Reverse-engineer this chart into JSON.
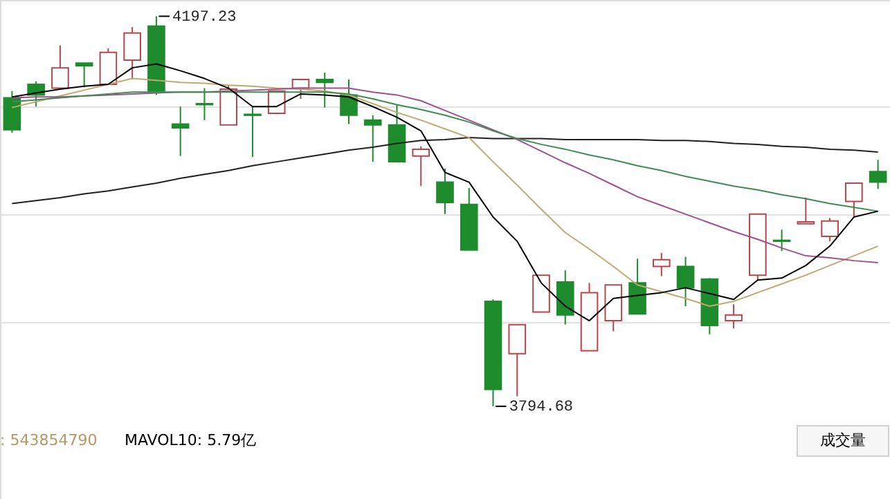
{
  "chart_data": {
    "type": "candlestick",
    "categories": [
      null,
      null,
      null,
      null,
      null,
      null,
      null,
      null,
      null,
      null,
      null,
      null,
      null,
      null,
      null,
      null,
      null,
      null,
      null,
      null,
      null,
      null,
      null,
      null,
      null,
      null,
      null,
      null,
      null,
      null,
      null,
      null,
      null,
      null,
      null,
      null,
      null
    ],
    "ohlc": [
      [
        4113,
        4120,
        4077,
        4080
      ],
      [
        4127,
        4130,
        4104,
        4116
      ],
      [
        4123,
        4167,
        4123,
        4144
      ],
      [
        4149,
        4149,
        4124,
        4146
      ],
      [
        4127,
        4164,
        4127,
        4160
      ],
      [
        4152,
        4186,
        4132,
        4180
      ],
      [
        4187,
        4197.23,
        4116,
        4120
      ],
      [
        4086,
        4104,
        4053,
        4082
      ],
      [
        4107,
        4123,
        4090,
        4106
      ],
      [
        4085,
        4126,
        4085,
        4122
      ],
      [
        4096,
        4104,
        4052,
        4095
      ],
      [
        4097,
        4120,
        4097,
        4120
      ],
      [
        4123,
        4132,
        4112,
        4132
      ],
      [
        4132,
        4139,
        4103,
        4129
      ],
      [
        4116,
        4132,
        4086,
        4095
      ],
      [
        4090,
        4095,
        4047,
        4085
      ],
      [
        4085,
        4106,
        4047,
        4047
      ],
      [
        4053,
        4063,
        4022,
        4060
      ],
      [
        4026,
        4040,
        3993,
        4005
      ],
      [
        4003,
        4020,
        3956,
        3956
      ],
      [
        3903,
        3905,
        3794.68,
        3812
      ],
      [
        3849,
        3879,
        3805,
        3879
      ],
      [
        3892,
        3930,
        3892,
        3930
      ],
      [
        3923,
        3935,
        3879,
        3889
      ],
      [
        3852,
        3922,
        3852,
        3912
      ],
      [
        3883,
        3920,
        3872,
        3920
      ],
      [
        3922,
        3947,
        3890,
        3890
      ],
      [
        3939,
        3953,
        3929,
        3946
      ],
      [
        3939,
        3949,
        3898,
        3917
      ],
      [
        3926,
        3927,
        3869,
        3878
      ],
      [
        3883,
        3900,
        3875,
        3889
      ],
      [
        3930,
        3993,
        3925,
        3993
      ],
      [
        3966,
        3977,
        3955,
        3965
      ],
      [
        3983,
        4010,
        3983,
        3985
      ],
      [
        3970,
        3989,
        3965,
        3986
      ],
      [
        4006,
        4025,
        3990,
        4025
      ],
      [
        4037,
        4049,
        4019,
        4026
      ]
    ],
    "colors": [
      "#1e8c2c",
      "#1e8c2c",
      "#b5474b",
      "#1e8c2c",
      "#b5474b",
      "#b5474b",
      "#1e8c2c",
      "#1e8c2c",
      "#1e8c2c",
      "#b5474b",
      "#1e8c2c",
      "#b5474b",
      "#b5474b",
      "#1e8c2c",
      "#1e8c2c",
      "#1e8c2c",
      "#1e8c2c",
      "#b5474b",
      "#1e8c2c",
      "#1e8c2c",
      "#1e8c2c",
      "#b5474b",
      "#b5474b",
      "#1e8c2c",
      "#b5474b",
      "#b5474b",
      "#1e8c2c",
      "#b5474b",
      "#1e8c2c",
      "#1e8c2c",
      "#b5474b",
      "#b5474b",
      "#1e8c2c",
      "#b5474b",
      "#b5474b",
      "#b5474b",
      "#1e8c2c"
    ],
    "series": [
      {
        "type": "line",
        "color": "#202020",
        "values": [
          4004,
          4007,
          4010,
          4014,
          4017,
          4021,
          4025,
          4030,
          4034,
          4038,
          4043,
          4047,
          4051,
          4055,
          4059,
          4062,
          4066,
          4069,
          4070,
          4072,
          4071,
          4071,
          4071,
          4070,
          4070,
          4070,
          4070,
          4069,
          4069,
          4068,
          4066,
          4065,
          4063,
          4062,
          4060,
          4059,
          4057
        ]
      },
      {
        "type": "line",
        "color": "#c0a870",
        "values": [
          4103,
          4109,
          4115,
          4121,
          4127,
          4133,
          4131,
          4129,
          4128,
          4126,
          4125,
          4123,
          4122,
          4120,
          4116,
          4107,
          4098,
          4090,
          4081,
          4072,
          4047,
          4023,
          3998,
          3974,
          3957,
          3939,
          3920,
          3913,
          3906,
          3898,
          3903,
          3912,
          3921,
          3930,
          3940,
          3950,
          3960
        ]
      },
      {
        "type": "line",
        "color": "#a0508a",
        "values": [
          4113,
          4114,
          4114,
          4115,
          4116,
          4117,
          4118,
          4119,
          4119,
          4120,
          4121,
          4122,
          4123,
          4123,
          4123,
          4119,
          4116,
          4110,
          4100,
          4090,
          4080,
          4070,
          4058,
          4046,
          4035,
          4023,
          4011,
          4002,
          3993,
          3984,
          3975,
          3967,
          3958,
          3950,
          3948,
          3945,
          3943
        ]
      },
      {
        "type": "line",
        "color": "#3f8a55",
        "values": [
          4109,
          4111,
          4113,
          4115,
          4117,
          4119,
          4119,
          4119,
          4119,
          4119,
          4119,
          4119,
          4119,
          4119,
          4117,
          4112,
          4106,
          4101,
          4095,
          4088,
          4079,
          4071,
          4065,
          4060,
          4054,
          4049,
          4043,
          4038,
          4032,
          4027,
          4022,
          4018,
          4013,
          4009,
          4004,
          4000,
          3996
        ]
      },
      {
        "type": "line",
        "color": "#000000",
        "values": [
          4114,
          4118,
          4122,
          4125,
          4127,
          4144,
          4148,
          4141,
          4133,
          4123,
          4104,
          4104,
          4117,
          4116,
          4114,
          4104,
          4093,
          4079,
          4036,
          4026,
          3990,
          3965,
          3922,
          3898,
          3883,
          3906,
          3909,
          3912,
          3917,
          3911,
          3905,
          3925,
          3927,
          3940,
          3960,
          3990,
          3996
        ]
      }
    ],
    "ylim": [
      3699,
      4214
    ],
    "yticks": [
      {
        "value": 3882,
        "label": null
      },
      {
        "value": 3993,
        "label": null
      },
      {
        "value": 4104,
        "label": null
      }
    ],
    "grid": true,
    "annotations": [
      "4197.23",
      "3794.68",
      ": 543854790",
      "MAVOL10: 5.79亿",
      "成交量"
    ]
  }
}
